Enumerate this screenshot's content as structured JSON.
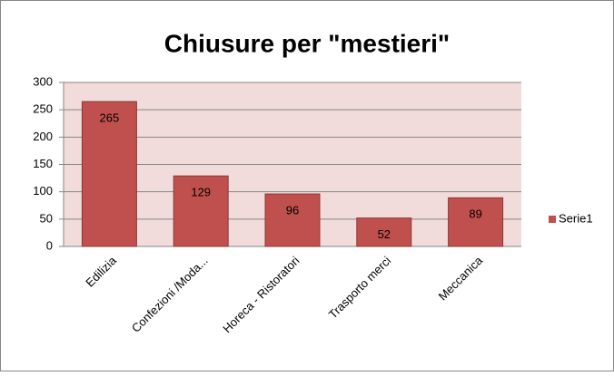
{
  "chart_data": {
    "type": "bar",
    "title": "Chiusure per \"mestieri\"",
    "categories": [
      "Edilizia",
      "Confezioni /Moda...",
      "Horeca - Ristoratori",
      "Trasporto merci",
      "Meccanica"
    ],
    "series": [
      {
        "name": "Serie1",
        "color": "#c0504d",
        "values": [
          265,
          129,
          96,
          52,
          89
        ]
      }
    ],
    "ylim": [
      0,
      300
    ],
    "yticks": [
      0,
      50,
      100,
      150,
      200,
      250,
      300
    ],
    "grid": true,
    "legend": "right"
  }
}
